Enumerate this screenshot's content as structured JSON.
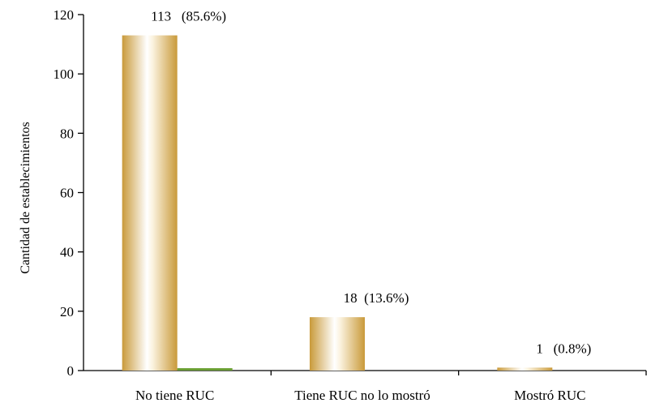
{
  "chart_data": {
    "type": "bar",
    "categories": [
      "No tiene RUC",
      "Tiene RUC no lo mostró",
      "Mostró RUC"
    ],
    "series": [
      {
        "values": [
          113,
          18,
          1
        ],
        "color": "#d4a94a"
      },
      {
        "values": [
          0.8,
          0,
          0
        ],
        "color": "#6a9e32"
      }
    ],
    "data_labels": [
      "113   (85.6%)",
      "18  (13.6%)",
      "1   (0.8%)"
    ],
    "title": "",
    "xlabel": "",
    "ylabel": "Cantidad de establecimientos",
    "ylim": [
      0,
      120
    ],
    "yticks": [
      0,
      20,
      40,
      60,
      80,
      100,
      120
    ],
    "grid": false,
    "legend": "none"
  }
}
